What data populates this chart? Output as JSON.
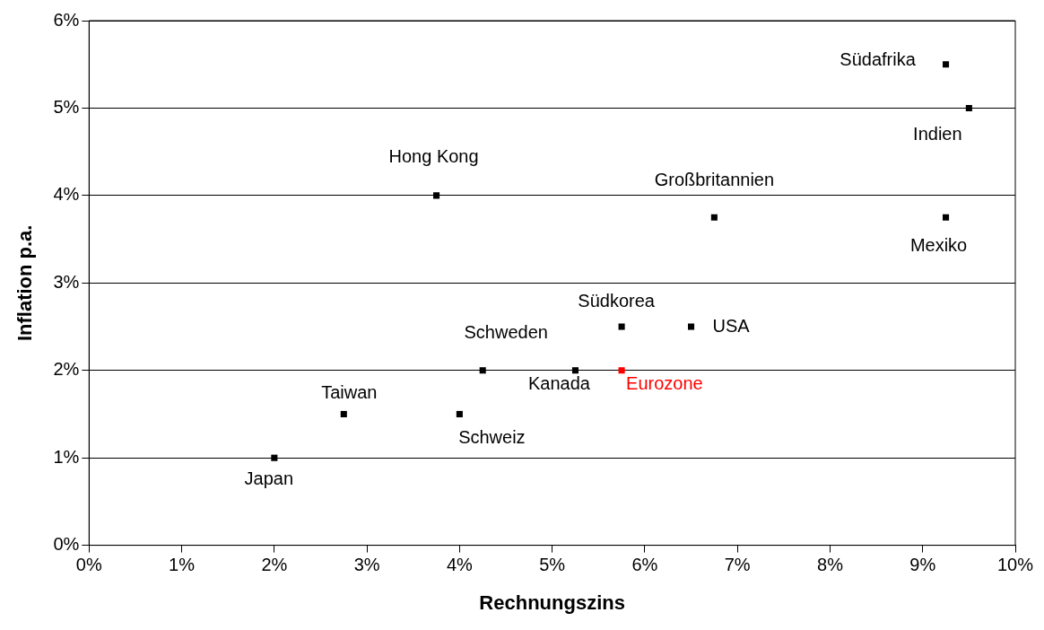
{
  "chart_data": {
    "type": "scatter",
    "xlabel": "Rechnungszins",
    "ylabel": "Inflation p.a.",
    "xlim": [
      0,
      10
    ],
    "xticks": [
      {
        "value": 0,
        "label": "0%"
      },
      {
        "value": 1,
        "label": "1%"
      },
      {
        "value": 2,
        "label": "2%"
      },
      {
        "value": 3,
        "label": "3%"
      },
      {
        "value": 4,
        "label": "4%"
      },
      {
        "value": 5,
        "label": "5%"
      },
      {
        "value": 6,
        "label": "6%"
      },
      {
        "value": 7,
        "label": "7%"
      },
      {
        "value": 8,
        "label": "8%"
      },
      {
        "value": 9,
        "label": "9%"
      },
      {
        "value": 10,
        "label": "10%"
      }
    ],
    "ylim": [
      0,
      6
    ],
    "yticks": [
      {
        "value": 0,
        "label": "0%"
      },
      {
        "value": 1,
        "label": "1%"
      },
      {
        "value": 2,
        "label": "2%"
      },
      {
        "value": 3,
        "label": "3%"
      },
      {
        "value": 4,
        "label": "4%"
      },
      {
        "value": 5,
        "label": "5%"
      },
      {
        "value": 6,
        "label": "6%"
      }
    ],
    "grid": "y",
    "legend": false,
    "marker": "square",
    "series": [
      {
        "name": "Japan",
        "color": "#000000",
        "x": [
          2
        ],
        "values": [
          1
        ]
      },
      {
        "name": "Taiwan",
        "color": "#000000",
        "x": [
          2.75
        ],
        "values": [
          1.5
        ]
      },
      {
        "name": "Schweiz",
        "color": "#000000",
        "x": [
          4
        ],
        "values": [
          1.5
        ]
      },
      {
        "name": "Schweden",
        "color": "#000000",
        "x": [
          4.25
        ],
        "values": [
          2
        ]
      },
      {
        "name": "Hong Kong",
        "color": "#000000",
        "x": [
          3.75
        ],
        "values": [
          4
        ]
      },
      {
        "name": "Kanada",
        "color": "#000000",
        "x": [
          5.25
        ],
        "values": [
          2
        ]
      },
      {
        "name": "Eurozone",
        "color": "#ff0000",
        "x": [
          5.75
        ],
        "values": [
          2
        ]
      },
      {
        "name": "Südkorea",
        "color": "#000000",
        "x": [
          5.75
        ],
        "values": [
          2.5
        ]
      },
      {
        "name": "USA",
        "color": "#000000",
        "x": [
          6.5
        ],
        "values": [
          2.5
        ]
      },
      {
        "name": "Großbritannien",
        "color": "#000000",
        "x": [
          6.75
        ],
        "values": [
          3.75
        ]
      },
      {
        "name": "Mexiko",
        "color": "#000000",
        "x": [
          9.25
        ],
        "values": [
          3.75
        ]
      },
      {
        "name": "Südafrika",
        "color": "#000000",
        "x": [
          9.25
        ],
        "values": [
          5.5
        ]
      },
      {
        "name": "Indien",
        "color": "#000000",
        "x": [
          9.5
        ],
        "values": [
          5
        ]
      }
    ]
  }
}
